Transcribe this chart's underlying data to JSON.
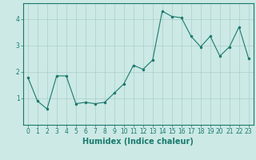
{
  "x": [
    0,
    1,
    2,
    3,
    4,
    5,
    6,
    7,
    8,
    9,
    10,
    11,
    12,
    13,
    14,
    15,
    16,
    17,
    18,
    19,
    20,
    21,
    22,
    23
  ],
  "y": [
    1.8,
    0.9,
    0.6,
    1.85,
    1.85,
    0.8,
    0.85,
    0.8,
    0.85,
    1.2,
    1.55,
    2.25,
    2.1,
    2.45,
    4.3,
    4.1,
    4.05,
    3.35,
    2.95,
    3.35,
    2.6,
    2.95,
    3.7,
    2.5
  ],
  "line_color": "#1a7a6e",
  "marker": ".",
  "marker_size": 3,
  "xlabel": "Humidex (Indice chaleur)",
  "ylim": [
    0,
    4.6
  ],
  "xlim": [
    -0.5,
    23.5
  ],
  "yticks": [
    1,
    2,
    3,
    4
  ],
  "xticks": [
    0,
    1,
    2,
    3,
    4,
    5,
    6,
    7,
    8,
    9,
    10,
    11,
    12,
    13,
    14,
    15,
    16,
    17,
    18,
    19,
    20,
    21,
    22,
    23
  ],
  "bg_color": "#cce9e5",
  "grid_color": "#aacfcb",
  "tick_fontsize": 5.5,
  "xlabel_fontsize": 7
}
